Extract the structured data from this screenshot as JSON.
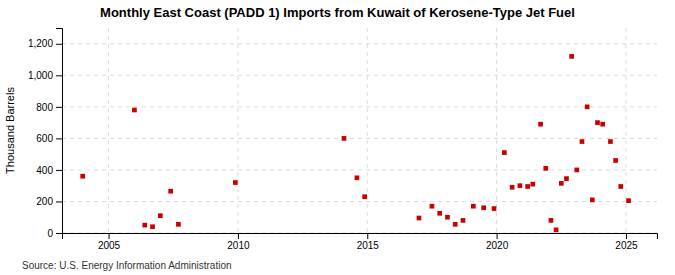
{
  "chart_data": {
    "type": "scatter",
    "title": "Monthly East Coast (PADD 1) Imports from Kuwait of Kerosene-Type Jet Fuel",
    "y_label": "Thousand Barrels",
    "annotations": [
      "Source: U.S. Energy Information Administration"
    ],
    "color": "#cc0000",
    "marker": "square",
    "grid": true,
    "xlim": [
      2003.2,
      2026.2
    ],
    "ylim": [
      0,
      1300
    ],
    "xticks": [
      2005,
      2010,
      2015,
      2020,
      2025
    ],
    "yticks": [
      0,
      200,
      400,
      600,
      800,
      {
        "value": 1000,
        "label": "1,000"
      },
      {
        "value": 1200,
        "label": "1,200"
      }
    ],
    "x": [
      2004.0,
      2006.0,
      2006.4,
      2006.7,
      2007.0,
      2007.4,
      2007.7,
      2009.9,
      2014.1,
      2014.6,
      2014.9,
      2017.0,
      2017.5,
      2017.8,
      2018.1,
      2018.4,
      2018.7,
      2019.1,
      2019.5,
      2019.9,
      2020.3,
      2020.6,
      2020.9,
      2021.2,
      2021.4,
      2021.7,
      2021.9,
      2022.1,
      2022.3,
      2022.5,
      2022.7,
      2022.9,
      2023.1,
      2023.3,
      2023.5,
      2023.7,
      2023.9,
      2024.1,
      2024.4,
      2024.6,
      2024.8,
      2025.1
    ],
    "values": [
      360,
      780,
      50,
      40,
      110,
      265,
      55,
      320,
      600,
      350,
      230,
      95,
      170,
      125,
      100,
      55,
      80,
      170,
      160,
      155,
      510,
      290,
      300,
      295,
      310,
      690,
      410,
      80,
      20,
      315,
      345,
      1120,
      400,
      580,
      800,
      210,
      700,
      690,
      580,
      460,
      295,
      205
    ]
  }
}
